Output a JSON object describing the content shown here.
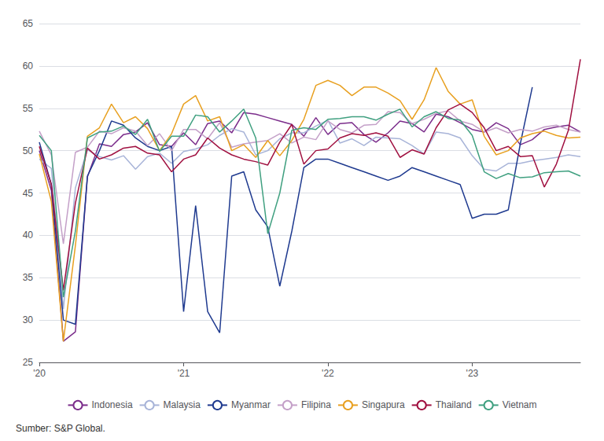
{
  "chart_data": {
    "type": "line",
    "annotations": [
      "Sumber: S&P Global."
    ],
    "categories": [
      "'20",
      null,
      null,
      null,
      null,
      null,
      null,
      null,
      null,
      null,
      null,
      null,
      "'21",
      null,
      null,
      null,
      null,
      null,
      null,
      null,
      null,
      null,
      null,
      null,
      "'22",
      null,
      null,
      null,
      null,
      null,
      null,
      null,
      null,
      null,
      null,
      null,
      "'23",
      null,
      null,
      null,
      null,
      null,
      null,
      null,
      null,
      null
    ],
    "ylim": [
      25,
      65
    ],
    "yticks": [
      25,
      30,
      35,
      40,
      45,
      50,
      55,
      60,
      65
    ],
    "grid": true,
    "legend": "bottom",
    "series": [
      {
        "name": "Indonesia",
        "color": "#7B2D8B",
        "values": [
          50.0,
          45.3,
          27.5,
          28.6,
          46.9,
          50.8,
          50.5,
          51.9,
          52.2,
          53.3,
          50.7,
          50.5,
          52.1,
          50.7,
          53.2,
          53.5,
          52.1,
          54.5,
          54.3,
          53.9,
          53.5,
          53.1,
          51.7,
          53.9,
          51.9,
          53.2,
          53.3,
          51.9,
          51.0,
          52.1,
          53.5,
          53.2,
          52.2,
          54.3,
          54.0,
          53.3,
          52.5,
          52.2,
          53.3,
          52.6,
          50.7,
          51.3,
          52.5,
          52.8,
          53.0,
          52.2
        ]
      },
      {
        "name": "Malaysia",
        "color": "#A8B4D8",
        "values": [
          49.0,
          47.9,
          31.3,
          45.6,
          50.1,
          49.3,
          48.9,
          49.4,
          47.8,
          49.3,
          49.7,
          48.5,
          49.9,
          50.2,
          50.7,
          51.8,
          52.6,
          52.2,
          49.5,
          50.0,
          51.4,
          52.1,
          52.1,
          52.9,
          53.6,
          50.9,
          51.4,
          50.6,
          51.6,
          51.5,
          51.4,
          50.6,
          49.6,
          52.2,
          52.0,
          51.5,
          49.4,
          47.8,
          47.6,
          48.5,
          48.5,
          48.8,
          49.0,
          49.2,
          49.5,
          49.3
        ]
      },
      {
        "name": "Myanmar",
        "color": "#1F3A8F",
        "values": [
          51.0,
          46.0,
          30.0,
          29.5,
          47.0,
          50.0,
          53.5,
          53.0,
          51.5,
          50.5,
          50.0,
          50.5,
          31.0,
          43.5,
          31.0,
          28.5,
          47.0,
          47.5,
          43.0,
          41.0,
          34.0,
          40.5,
          48.0,
          49.0,
          49.0,
          48.5,
          48.0,
          47.5,
          47.0,
          46.5,
          47.0,
          48.0,
          47.5,
          47.0,
          46.5,
          46.0,
          42.0,
          42.5,
          42.5,
          43.0,
          50.8,
          57.5,
          null,
          null,
          null,
          null
        ]
      },
      {
        "name": "Filipina",
        "color": "#C4A0C8",
        "values": [
          52.3,
          49.5,
          39.0,
          49.8,
          50.4,
          52.3,
          52.0,
          52.7,
          52.3,
          50.6,
          52.0,
          50.0,
          52.5,
          52.5,
          51.4,
          53.3,
          50.4,
          50.8,
          51.0,
          51.2,
          52.0,
          50.9,
          51.6,
          51.3,
          53.5,
          52.5,
          52.1,
          53.0,
          53.1,
          54.6,
          54.5,
          53.2,
          53.7,
          54.4,
          54.7,
          53.5,
          53.1,
          52.2,
          52.7,
          52.1,
          52.5,
          52.3,
          52.8,
          53.0,
          52.5,
          52.2
        ]
      },
      {
        "name": "Singapura",
        "color": "#E8A020",
        "values": [
          49.6,
          44.0,
          27.5,
          38.8,
          51.7,
          52.7,
          55.5,
          53.3,
          54.0,
          52.6,
          50.0,
          52.0,
          55.5,
          56.5,
          53.5,
          54.0,
          50.0,
          50.7,
          49.2,
          51.2,
          49.4,
          51.2,
          53.7,
          57.7,
          58.3,
          57.7,
          56.5,
          57.5,
          57.5,
          56.8,
          55.9,
          53.7,
          56.0,
          59.8,
          57.0,
          55.5,
          56.0,
          51.7,
          49.5,
          50.0,
          51.5,
          52.0,
          52.3,
          51.8,
          51.5,
          51.6
        ]
      },
      {
        "name": "Thailand",
        "color": "#A01040",
        "values": [
          50.5,
          46.0,
          33.5,
          43.8,
          50.3,
          49.0,
          49.5,
          50.3,
          50.5,
          49.7,
          49.5,
          47.5,
          49.0,
          49.5,
          51.5,
          50.3,
          49.5,
          49.0,
          48.7,
          48.3,
          51.0,
          53.1,
          48.4,
          50.0,
          50.2,
          51.5,
          52.0,
          51.8,
          52.1,
          51.7,
          49.2,
          50.1,
          49.6,
          52.7,
          54.8,
          55.5,
          54.5,
          52.7,
          50.0,
          50.5,
          49.3,
          49.4,
          45.7,
          48.4,
          52.4,
          60.8
        ]
      },
      {
        "name": "Vietnam",
        "color": "#40A080",
        "values": [
          51.8,
          50.0,
          32.7,
          40.5,
          51.5,
          52.2,
          52.3,
          52.9,
          51.9,
          53.7,
          49.9,
          51.7,
          51.7,
          54.2,
          54.0,
          52.2,
          53.5,
          54.9,
          51.5,
          40.2,
          45.0,
          52.4,
          52.7,
          52.5,
          53.7,
          53.8,
          54.0,
          54.0,
          53.6,
          54.3,
          54.9,
          52.8,
          54.0,
          54.6,
          53.8,
          53.6,
          51.8,
          47.5,
          46.7,
          47.3,
          46.8,
          46.9,
          47.4,
          47.5,
          47.6,
          47.0
        ]
      }
    ]
  }
}
